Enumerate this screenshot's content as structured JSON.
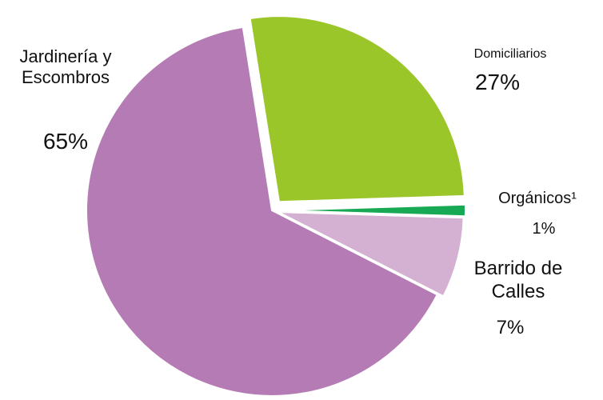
{
  "chart_data": {
    "type": "pie",
    "categories": [
      "Domiciliarios",
      "Orgánicos¹",
      "Barrido de Calles",
      "Jardinería y Escombros"
    ],
    "values": [
      27,
      1,
      7,
      65
    ],
    "value_labels": [
      "27%",
      "1%",
      "7%",
      "65%"
    ],
    "colors": [
      "#9bc62a",
      "#17a953",
      "#d4b0d3",
      "#b57bb4"
    ]
  }
}
